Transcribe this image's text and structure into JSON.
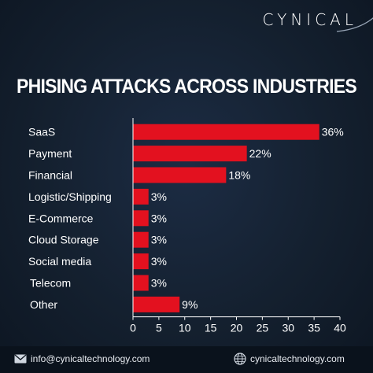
{
  "brand": {
    "logo_text": "CYNICAL"
  },
  "chart_data": {
    "type": "bar",
    "orientation": "horizontal",
    "title": "PHISING ATTACKS ACROSS INDUSTRIES",
    "categories": [
      "SaaS",
      "Payment",
      "Financial",
      "Logistic/Shipping",
      "E-Commerce",
      "Cloud Storage",
      "Social media",
      "Telecom",
      "Other"
    ],
    "values": [
      36,
      22,
      18,
      3,
      3,
      3,
      3,
      3,
      9
    ],
    "value_labels": [
      "36%",
      "22%",
      "18%",
      "3%",
      "3%",
      "3%",
      "3%",
      "3%",
      "9%"
    ],
    "xlim": [
      0,
      40
    ],
    "xticks": [
      0,
      5,
      10,
      15,
      20,
      25,
      30,
      35,
      40
    ],
    "bar_color": "#e3111f",
    "grid": false,
    "xlabel": "",
    "ylabel": ""
  },
  "footer": {
    "email": "info@cynicaltechnology.com",
    "website": "cynicaltechnology.com"
  },
  "colors": {
    "background": "#14202f",
    "footer": "#0a121c",
    "text": "#ffffff"
  }
}
